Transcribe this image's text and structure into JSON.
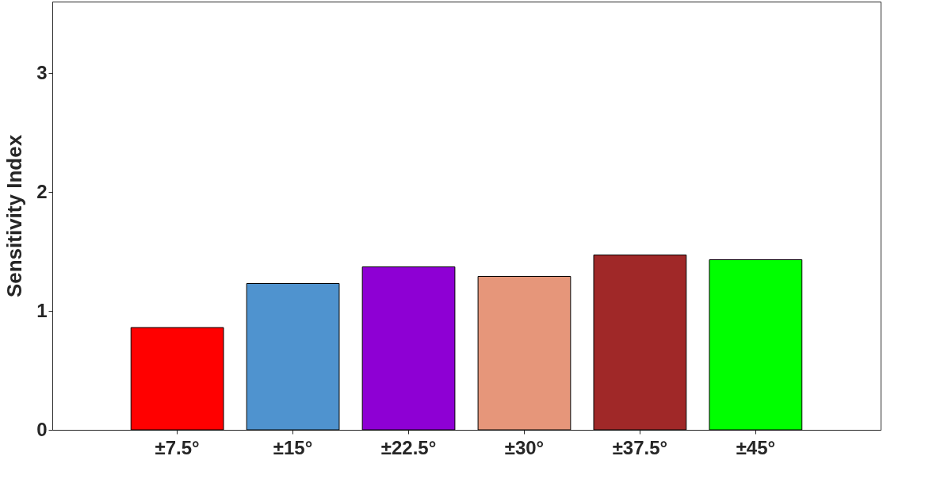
{
  "chart_data": {
    "type": "bar",
    "ylabel": "Sensitivity Index",
    "categories": [
      "±7.5°",
      "±15°",
      "±22.5°",
      "±30°",
      "±37.5°",
      "±45°"
    ],
    "values": [
      0.86,
      1.23,
      1.37,
      1.29,
      1.47,
      1.43
    ],
    "colors": [
      "#ff0000",
      "#4f93cf",
      "#8e00d4",
      "#e6967a",
      "#a02828",
      "#00ff00"
    ],
    "ylim": [
      0,
      3.6
    ],
    "yticks": [
      0,
      1,
      2,
      3
    ],
    "grid": false
  }
}
